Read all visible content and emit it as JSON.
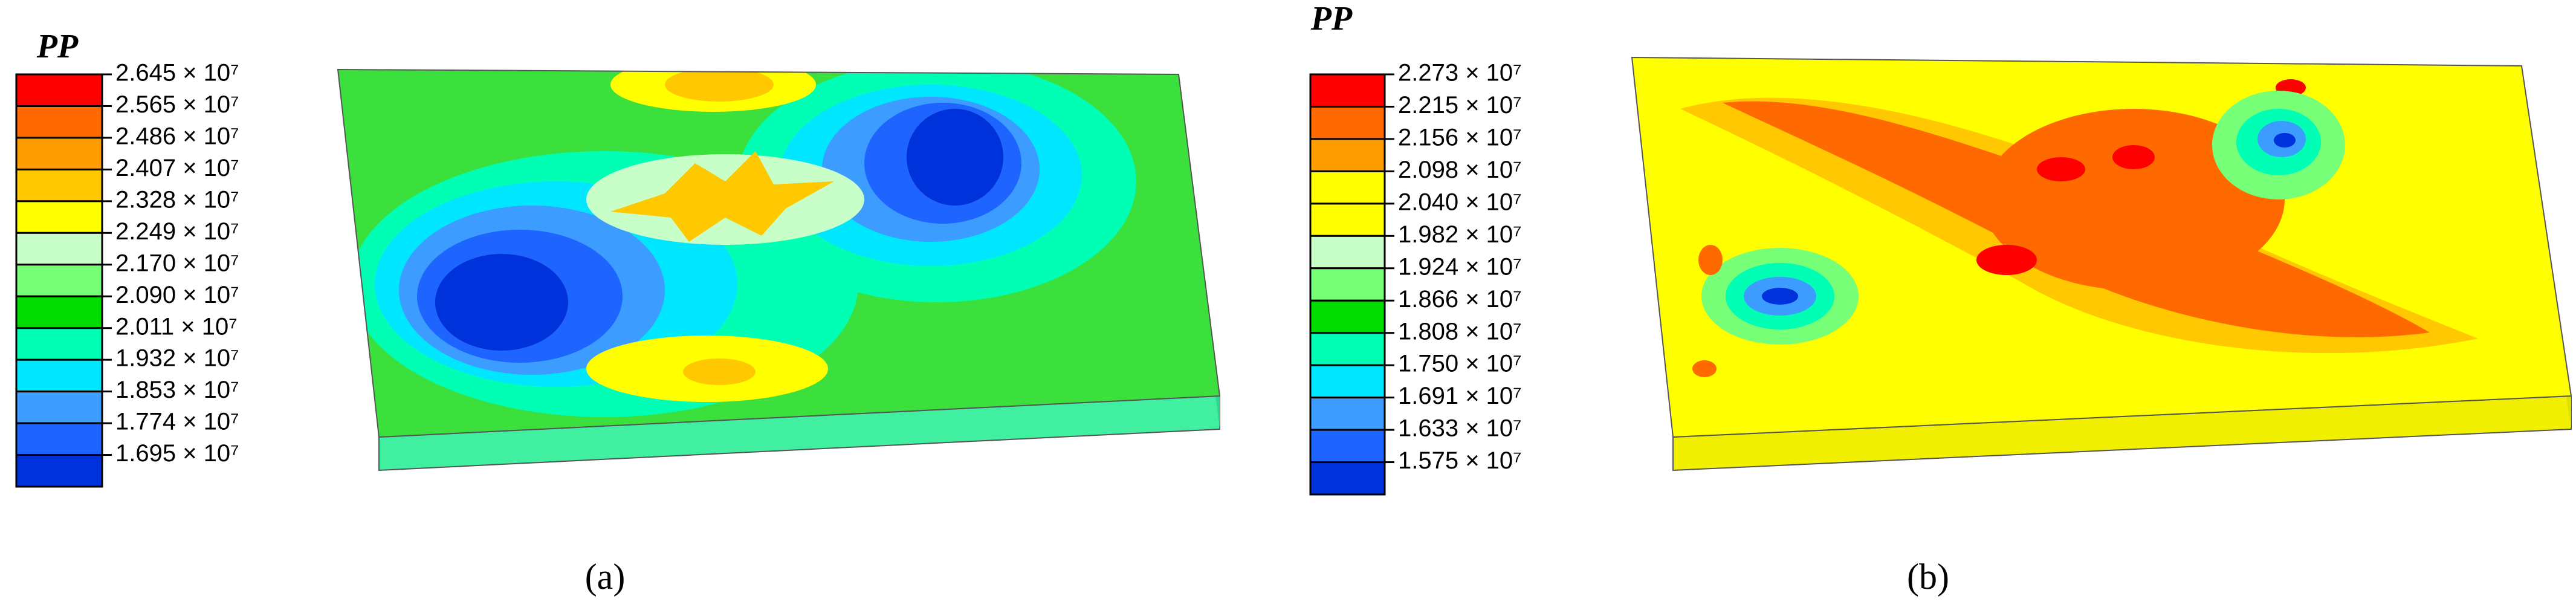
{
  "panels": [
    {
      "legend_title": "PP",
      "legend_labels": [
        "2.645 × 10⁷",
        "2.565 × 10⁷",
        "2.486 × 10⁷",
        "2.407 × 10⁷",
        "2.328 × 10⁷",
        "2.249 × 10⁷",
        "2.170 × 10⁷",
        "2.090 × 10⁷",
        "2.011 × 10⁷",
        "1.932 × 10⁷",
        "1.853 × 10⁷",
        "1.774 × 10⁷",
        "1.695 × 10⁷"
      ],
      "legend_colors": [
        "#ff0000",
        "#ff6a00",
        "#ff9d00",
        "#ffc800",
        "#ffff00",
        "#c8ffc8",
        "#78ff78",
        "#00dc00",
        "#00ffb4",
        "#00e6ff",
        "#3c9cff",
        "#1e64ff",
        "#0032dc"
      ],
      "caption": "(a)"
    },
    {
      "legend_title": "PP",
      "legend_labels": [
        "2.273 × 10⁷",
        "2.215 × 10⁷",
        "2.156 × 10⁷",
        "2.098 × 10⁷",
        "2.040 × 10⁷",
        "1.982 × 10⁷",
        "1.924 × 10⁷",
        "1.866 × 10⁷",
        "1.808 × 10⁷",
        "1.750 × 10⁷",
        "1.691 × 10⁷",
        "1.633 × 10⁷",
        "1.575 × 10⁷"
      ],
      "legend_colors": [
        "#ff0000",
        "#ff6a00",
        "#ff9d00",
        "#ffff00",
        "#ffff00",
        "#c8ffc8",
        "#78ff78",
        "#00dc00",
        "#00ffb4",
        "#00e6ff",
        "#3c9cff",
        "#1e64ff",
        "#0032dc"
      ],
      "caption": "(b)"
    }
  ]
}
